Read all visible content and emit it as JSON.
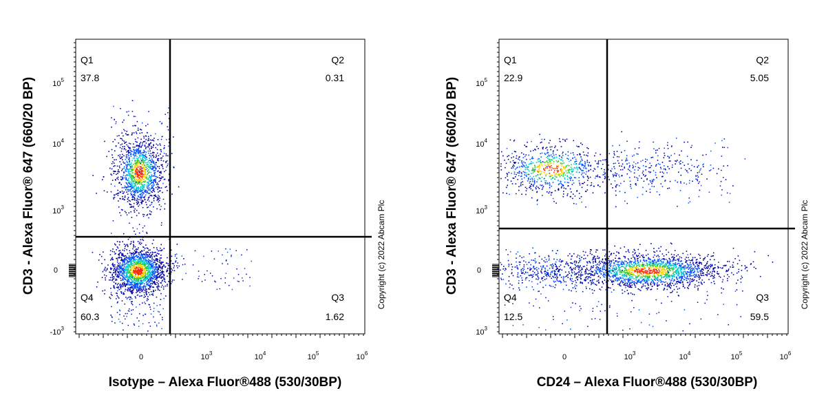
{
  "chart_data": [
    {
      "type": "scatter",
      "xlabel": "Isotype – Alexa Fluor®488 (530/30BP)",
      "ylabel": "CD3 - Alexa Fluor® 647 (660/20 BP)",
      "copyright": "Copyright (c) 2022 Abcam Plc",
      "x_scale": "biexponential",
      "y_scale": "biexponential",
      "x_ticks": [
        {
          "base": "0",
          "exp": ""
        },
        {
          "base": "10",
          "exp": "3"
        },
        {
          "base": "10",
          "exp": "4"
        },
        {
          "base": "10",
          "exp": "5"
        },
        {
          "base": "10",
          "exp": "6"
        }
      ],
      "y_ticks": [
        {
          "base": "-10",
          "exp": "3"
        },
        {
          "base": "0",
          "exp": ""
        },
        {
          "base": "10",
          "exp": "3"
        },
        {
          "base": "10",
          "exp": "4"
        },
        {
          "base": "10",
          "exp": "5"
        }
      ],
      "quadrants": [
        {
          "name": "Q1",
          "value": "37.8"
        },
        {
          "name": "Q2",
          "value": "0.31"
        },
        {
          "name": "Q3",
          "value": "1.62"
        },
        {
          "name": "Q4",
          "value": "60.3"
        }
      ]
    },
    {
      "type": "scatter",
      "xlabel": "CD24 – Alexa Fluor®488 (530/30BP)",
      "ylabel": "CD3 - Alexa Fluor® 647 (660/20 BP)",
      "copyright": "Copyright (c) 2022 Abcam Plc",
      "x_scale": "biexponential",
      "y_scale": "biexponential",
      "x_ticks": [
        {
          "base": "0",
          "exp": ""
        },
        {
          "base": "10",
          "exp": "3"
        },
        {
          "base": "10",
          "exp": "4"
        },
        {
          "base": "10",
          "exp": "5"
        },
        {
          "base": "10",
          "exp": "6"
        }
      ],
      "y_ticks": [
        {
          "base": "10",
          "exp": "3"
        },
        {
          "base": "0",
          "exp": ""
        },
        {
          "base": "10",
          "exp": "3"
        },
        {
          "base": "10",
          "exp": "4"
        },
        {
          "base": "10",
          "exp": "5"
        }
      ],
      "quadrants": [
        {
          "name": "Q1",
          "value": "22.9"
        },
        {
          "name": "Q2",
          "value": "5.05"
        },
        {
          "name": "Q3",
          "value": "59.5"
        },
        {
          "name": "Q4",
          "value": "12.5"
        }
      ]
    }
  ]
}
